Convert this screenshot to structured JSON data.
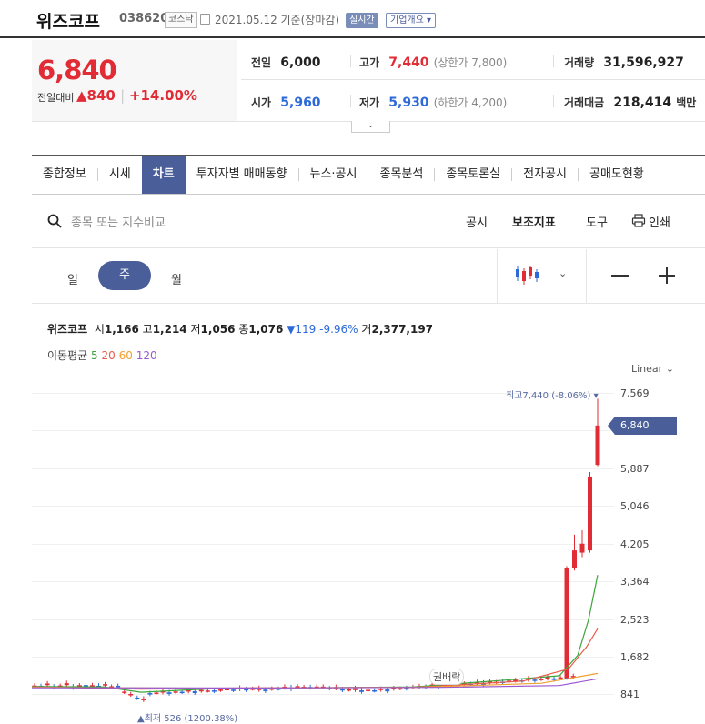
{
  "header": {
    "name": "위즈코프",
    "code": "038620",
    "market": "코스닥",
    "date": "2021.05.12 기준(장마감)",
    "realtime": "실시간",
    "company_info": "기업개요 ▾"
  },
  "price": {
    "current": "6,840",
    "change_label": "전일대비",
    "change": "▲840",
    "change_pct": "+14.00%"
  },
  "stats": {
    "prev_label": "전일",
    "prev": "6,000",
    "high_label": "고가",
    "high": "7,440",
    "high_limit": "(상한가 7,800)",
    "volume_label": "거래량",
    "volume": "31,596,927",
    "open_label": "시가",
    "open": "5,960",
    "low_label": "저가",
    "low": "5,930",
    "low_limit": "(하한가 4,200)",
    "amount_label": "거래대금",
    "amount": "218,414",
    "amount_unit": "백만"
  },
  "tabs": [
    "종합정보",
    "시세",
    "차트",
    "투자자별 매매동향",
    "뉴스·공시",
    "종목분석",
    "종목토론실",
    "전자공시",
    "공매도현황"
  ],
  "toolbar": {
    "search_placeholder": "종목 또는 지수비교",
    "notice": "공시",
    "indicator": "보조지표",
    "tools": "도구",
    "print": "인쇄"
  },
  "periods": {
    "day": "일",
    "week": "주",
    "month": "월"
  },
  "ohlc": {
    "name": "위즈코프",
    "open_label": "시",
    "open": "1,166",
    "high_label": "고",
    "high": "1,214",
    "low_label": "저",
    "low": "1,056",
    "close_label": "종",
    "close": "1,076",
    "change": "▼119 -9.96%",
    "vol_label": "거",
    "volume": "2,377,197"
  },
  "ma": {
    "label": "이동평균",
    "p5": "5",
    "p20": "20",
    "p60": "60",
    "p120": "120"
  },
  "chart": {
    "scale": "Linear",
    "y_ticks": [
      "7,569",
      "5,887",
      "5,046",
      "4,205",
      "3,364",
      "2,523",
      "1,682",
      "841"
    ],
    "current_tag": "6,840",
    "high_note": "최고7,440 (-8.06%)",
    "low_note": "▲최저 526 (1200.38%)",
    "rights_label": "권배락"
  },
  "chart_data": {
    "type": "candlestick",
    "period": "weekly",
    "ylim": [
      841,
      7569
    ],
    "recent": [
      {
        "label": "last-5",
        "open": 1200,
        "close": 3650,
        "high": 3700,
        "low": 1180
      },
      {
        "label": "last-4",
        "open": 3650,
        "close": 4050,
        "high": 4400,
        "low": 3600
      },
      {
        "label": "last-3",
        "open": 4000,
        "close": 4200,
        "high": 4500,
        "low": 3900
      },
      {
        "label": "last-2",
        "open": 4050,
        "close": 5700,
        "high": 5800,
        "low": 4000
      },
      {
        "label": "last-1",
        "open": 5960,
        "close": 6840,
        "high": 7440,
        "low": 5930
      }
    ]
  },
  "colors": {
    "up": "#e12c36",
    "down": "#2d6ad8",
    "accent": "#4a5f9a",
    "ma5": "#3aa63a",
    "ma20": "#e85b4a",
    "ma60": "#f0a030",
    "ma120": "#9b59d0"
  }
}
